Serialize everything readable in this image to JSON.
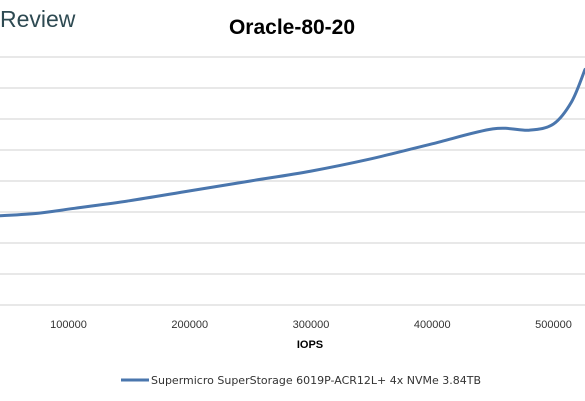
{
  "logo": {
    "text": "Review"
  },
  "chart_data": {
    "type": "line",
    "title": "Oracle-80-20",
    "xlabel": "IOPS",
    "ylabel": "",
    "x_ticks": [
      100000,
      200000,
      300000,
      400000,
      500000
    ],
    "xlim": [
      43500,
      526000
    ],
    "y_gridline_count": 8,
    "grid": true,
    "legend_position": "bottom",
    "colors": {
      "series": "#4a76ad",
      "grid": "#d0d0d0"
    },
    "series": [
      {
        "name": "Supermicro SuperStorage 6019P-ACR12L+ 4x NVMe 3.84TB",
        "x": [
          43500,
          75000,
          105000,
          150000,
          200000,
          250000,
          300000,
          350000,
          400000,
          450000,
          480000,
          500000,
          515000,
          526000
        ],
        "y": [
          0.36,
          0.37,
          0.39,
          0.42,
          0.46,
          0.5,
          0.54,
          0.59,
          0.65,
          0.71,
          0.705,
          0.73,
          0.82,
          0.95
        ]
      }
    ]
  }
}
